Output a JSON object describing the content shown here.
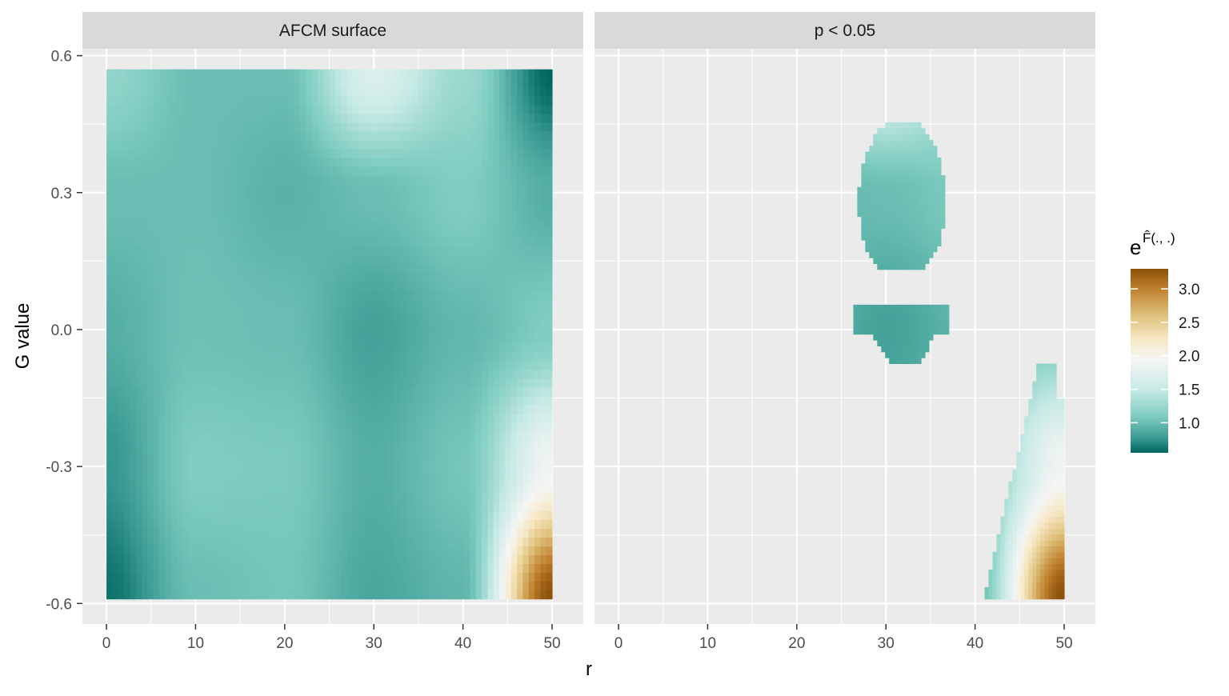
{
  "chart_data": {
    "type": "heatmap",
    "xlabel": "r",
    "ylabel": "G value",
    "xlim": [
      -2.7,
      53.5
    ],
    "ylim": [
      -0.645,
      0.615
    ],
    "x_ticks": [
      0,
      10,
      20,
      30,
      40,
      50
    ],
    "y_ticks": [
      -0.6,
      -0.3,
      0.0,
      0.3,
      0.6
    ],
    "x_tick_labels": [
      "0",
      "10",
      "20",
      "30",
      "40",
      "50"
    ],
    "y_tick_labels": [
      "-0.6",
      "-0.3",
      "0.0",
      "0.3",
      "0.6"
    ],
    "grid": true,
    "panels": [
      {
        "title": "AFCM surface",
        "x_range": [
          0,
          50
        ],
        "y_range": [
          -0.59,
          0.57
        ]
      },
      {
        "title": "p < 0.05",
        "regions": [
          {
            "shape": "upper-blob",
            "x_range": [
              27,
              37
            ],
            "y_range": [
              0.13,
              0.45
            ],
            "value_range": [
              1.1,
              1.6
            ]
          },
          {
            "shape": "middle-band",
            "x_range": [
              26,
              37
            ],
            "y_range": [
              -0.08,
              0.05
            ],
            "value_range": [
              0.85,
              0.95
            ]
          },
          {
            "shape": "corner-wedge",
            "x_range": [
              41,
              50
            ],
            "y_range": [
              -0.59,
              -0.08
            ],
            "value_range": [
              1.2,
              3.3
            ]
          }
        ]
      }
    ],
    "legend": {
      "title_base": "e",
      "title_exponent": "F̂(., .)",
      "position": "right",
      "min": 0.55,
      "max": 3.3,
      "breaks": [
        1.0,
        1.5,
        2.0,
        2.5,
        3.0
      ],
      "break_labels": [
        "1.0",
        "1.5",
        "2.0",
        "2.5",
        "3.0"
      ],
      "colors": [
        "#01665e",
        "#35978f",
        "#80cdc1",
        "#c7eae5",
        "#f5f5f5",
        "#f6e8c3",
        "#dfc27d",
        "#bf812d",
        "#8c510a"
      ],
      "color_stops": [
        0.55,
        0.75,
        1.1,
        1.5,
        1.95,
        2.25,
        2.6,
        3.0,
        3.3
      ]
    },
    "surface_controls": {
      "r": [
        0,
        10,
        20,
        30,
        40,
        50
      ],
      "g": [
        -0.59,
        -0.3,
        0.0,
        0.3,
        0.57
      ],
      "values": [
        [
          0.6,
          1.0,
          1.05,
          0.85,
          0.95,
          3.3
        ],
        [
          0.75,
          1.1,
          1.08,
          0.9,
          1.05,
          1.9
        ],
        [
          0.9,
          1.02,
          1.0,
          0.82,
          0.96,
          1.1
        ],
        [
          1.0,
          1.0,
          0.92,
          1.0,
          1.1,
          0.9
        ],
        [
          1.2,
          1.0,
          1.0,
          1.7,
          1.25,
          0.55
        ]
      ]
    }
  }
}
